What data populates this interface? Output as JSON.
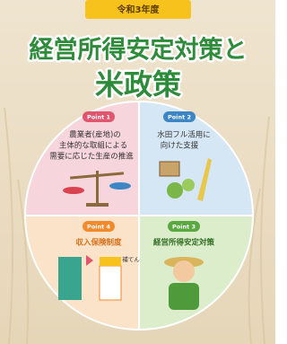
{
  "header": {
    "badge": "令和3年度",
    "title_line1": "経営所得安定対策と",
    "title_line2": "米政策"
  },
  "quadrants": [
    {
      "point": "Point 1",
      "lines": [
        "農業者(産地)の",
        "主体的な取組による",
        "需要に応じた生産の推進"
      ]
    },
    {
      "point": "Point 2",
      "lines": [
        "水田フル活用に",
        "向けた支援"
      ]
    },
    {
      "point": "Point 4",
      "lines": [
        "収入保険制度"
      ]
    },
    {
      "point": "Point 3",
      "lines": [
        "経営所得安定対策"
      ]
    }
  ],
  "annotation": "補てん"
}
